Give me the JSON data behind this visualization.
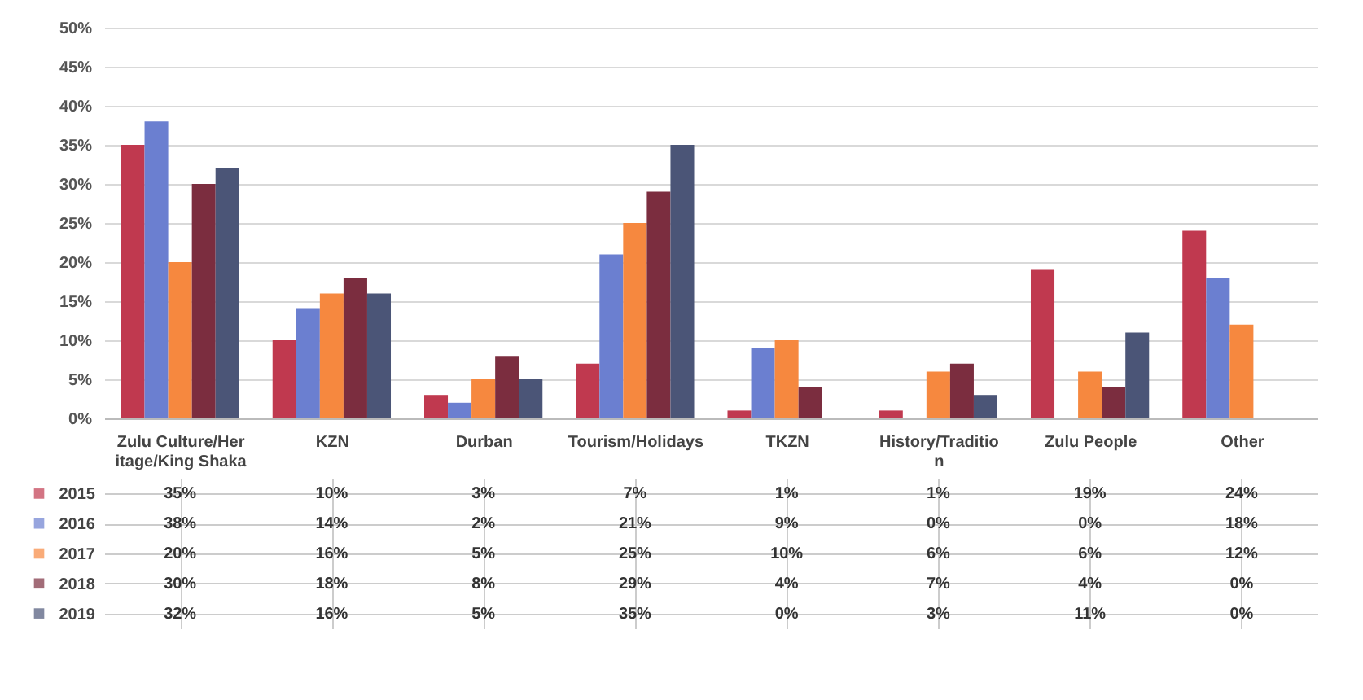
{
  "chart_data": {
    "type": "bar",
    "categories": [
      "Zulu Culture/Heritage/King Shaka",
      "KZN",
      "Durban",
      "Tourism/Holidays",
      "TKZN",
      "History/Tradition",
      "Zulu People",
      "Other"
    ],
    "series": [
      {
        "name": "2015",
        "color": "#c0394f",
        "values": [
          35,
          10,
          3,
          7,
          1,
          1,
          19,
          24
        ],
        "value_labels": [
          "35%",
          "10%",
          "3%",
          "7%",
          "1%",
          "1%",
          "19%",
          "24%"
        ]
      },
      {
        "name": "2016",
        "color": "#6b7fd0",
        "values": [
          38,
          14,
          2,
          21,
          9,
          0,
          0,
          18
        ],
        "value_labels": [
          "38%",
          "14%",
          "2%",
          "21%",
          "9%",
          "0%",
          "0%",
          "18%"
        ]
      },
      {
        "name": "2017",
        "color": "#f6883f",
        "values": [
          20,
          16,
          5,
          25,
          10,
          6,
          6,
          12
        ],
        "value_labels": [
          "20%",
          "16%",
          "5%",
          "25%",
          "10%",
          "6%",
          "6%",
          "12%"
        ]
      },
      {
        "name": "2018",
        "color": "#7b2d3f",
        "values": [
          30,
          18,
          8,
          29,
          4,
          7,
          4,
          0
        ],
        "value_labels": [
          "30%",
          "18%",
          "8%",
          "29%",
          "4%",
          "7%",
          "4%",
          "0%"
        ]
      },
      {
        "name": "2019",
        "color": "#4b5577",
        "values": [
          32,
          16,
          5,
          35,
          0,
          3,
          11,
          0
        ],
        "value_labels": [
          "32%",
          "16%",
          "5%",
          "35%",
          "0%",
          "3%",
          "11%",
          "0%"
        ]
      }
    ],
    "ylim": [
      0,
      50
    ],
    "yticks": [
      {
        "value": 0,
        "label": "0%"
      },
      {
        "value": 5,
        "label": "5%"
      },
      {
        "value": 10,
        "label": "10%"
      },
      {
        "value": 15,
        "label": "15%"
      },
      {
        "value": 20,
        "label": "20%"
      },
      {
        "value": 25,
        "label": "25%"
      },
      {
        "value": 30,
        "label": "30%"
      },
      {
        "value": 35,
        "label": "35%"
      },
      {
        "value": 40,
        "label": "40%"
      },
      {
        "value": 45,
        "label": "45%"
      },
      {
        "value": 50,
        "label": "50%"
      }
    ],
    "grid": "y",
    "legend": "left"
  }
}
